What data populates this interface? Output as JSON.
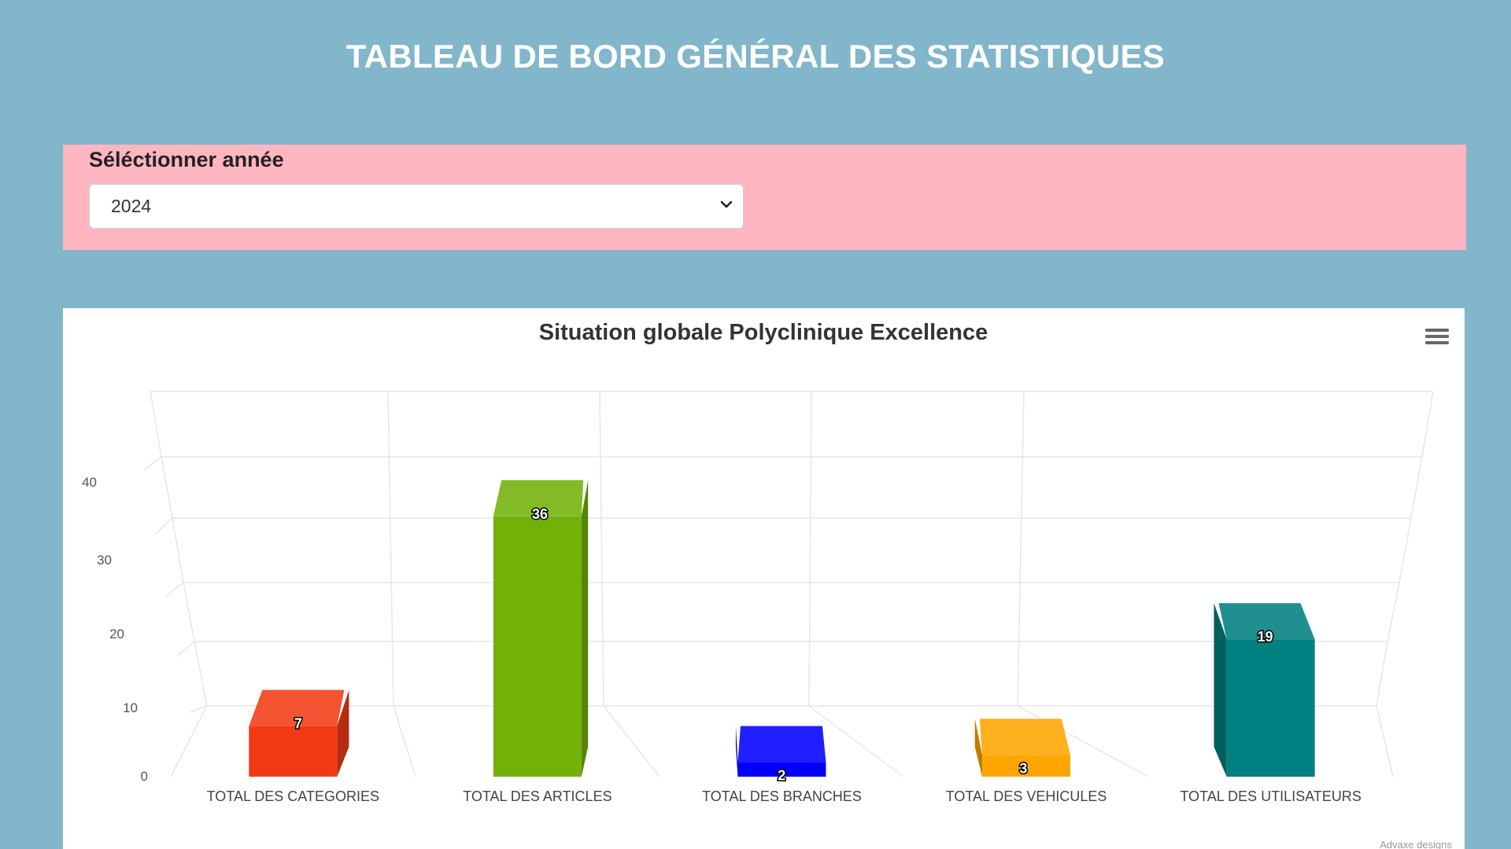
{
  "page": {
    "title": "TABLEAU DE BORD GÉNÉRAL DES STATISTIQUES"
  },
  "year_selector": {
    "label": "Séléctionner année",
    "selected": "2024"
  },
  "chart": {
    "menu_icon": "hamburger-menu-icon",
    "credits": "Advaxe designs"
  },
  "chart_data": {
    "type": "bar",
    "title": "Situation globale Polyclinique Excellence",
    "xlabel": "",
    "ylabel": "",
    "ylim": [
      0,
      50
    ],
    "yticks": [
      0,
      10,
      20,
      30,
      40
    ],
    "grid": true,
    "three_d": true,
    "categories": [
      "TOTAL DES CATEGORIES",
      "TOTAL DES ARTICLES",
      "TOTAL DES BRANCHES",
      "TOTAL DES VEHICULES",
      "TOTAL DES UTILISATEURS"
    ],
    "values": [
      7,
      36,
      2,
      3,
      19
    ],
    "colors": [
      "#f23b16",
      "#72b108",
      "#0000ff",
      "#ffa500",
      "#008080"
    ]
  }
}
